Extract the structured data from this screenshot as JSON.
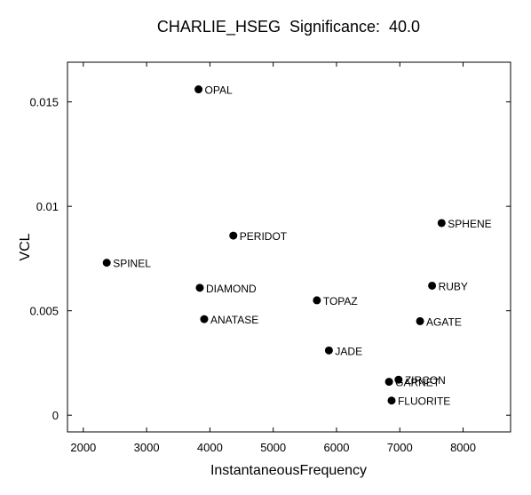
{
  "chart_data": {
    "type": "scatter",
    "title": "CHARLIE_HSEG  Significance:  40.0",
    "xlabel": "InstantaneousFrequency",
    "ylabel": "VCL",
    "xlim": [
      1750,
      8750
    ],
    "ylim": [
      -0.0008,
      0.0169
    ],
    "x_ticks": [
      2000,
      3000,
      4000,
      5000,
      6000,
      7000,
      8000
    ],
    "x_tick_labels": [
      "2000",
      "3000",
      "4000",
      "5000",
      "6000",
      "7000",
      "8000"
    ],
    "y_ticks": [
      0,
      0.005,
      0.01,
      0.015
    ],
    "y_tick_labels": [
      "0",
      "0.005",
      "0.01",
      "0.015"
    ],
    "grid": false,
    "marker_color": "#000000",
    "points": [
      {
        "label": "OPAL",
        "x": 3820,
        "y": 0.0156
      },
      {
        "label": "SPHENE",
        "x": 7660,
        "y": 0.0092
      },
      {
        "label": "PERIDOT",
        "x": 4370,
        "y": 0.0086
      },
      {
        "label": "SPINEL",
        "x": 2370,
        "y": 0.0073
      },
      {
        "label": "DIAMOND",
        "x": 3840,
        "y": 0.0061
      },
      {
        "label": "RUBY",
        "x": 7510,
        "y": 0.0062
      },
      {
        "label": "TOPAZ",
        "x": 5690,
        "y": 0.0055
      },
      {
        "label": "ANATASE",
        "x": 3910,
        "y": 0.0046
      },
      {
        "label": "AGATE",
        "x": 7320,
        "y": 0.0045
      },
      {
        "label": "JADE",
        "x": 5880,
        "y": 0.0031
      },
      {
        "label": "ZIRCON",
        "x": 6980,
        "y": 0.0017
      },
      {
        "label": "GARNET",
        "x": 6830,
        "y": 0.0016
      },
      {
        "label": "FLUORITE",
        "x": 6870,
        "y": 0.0007
      }
    ]
  }
}
